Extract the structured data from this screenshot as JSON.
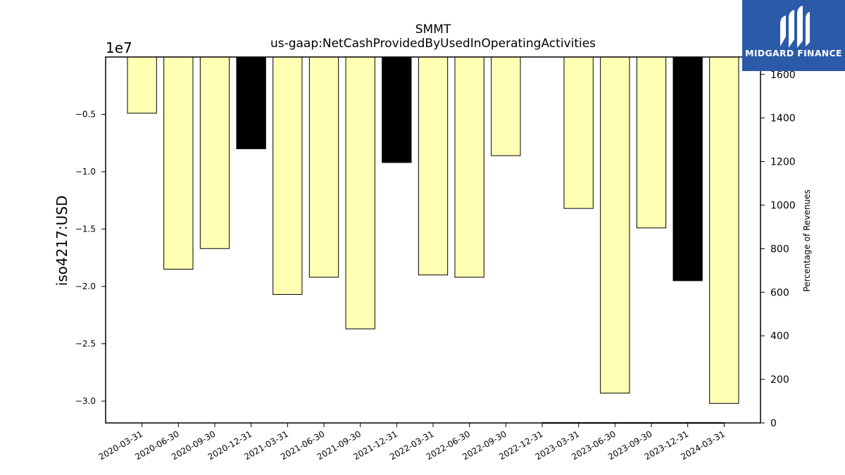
{
  "chart_data": {
    "type": "bar",
    "title": "SMMT",
    "subtitle": "us-gaap:NetCashProvidedByUsedInOperatingActivities",
    "ylabel": "iso4217:USD",
    "y_offset_label": "1e7",
    "y2label": "Percentage of Revenues",
    "categories": [
      "2020-03-31",
      "2020-06-30",
      "2020-09-30",
      "2020-12-31",
      "2021-03-31",
      "2021-06-30",
      "2021-09-30",
      "2021-12-31",
      "2022-03-31",
      "2022-06-30",
      "2022-09-30",
      "2022-12-31",
      "2023-03-31",
      "2023-06-30",
      "2023-09-30",
      "2023-12-31",
      "2024-03-31"
    ],
    "values": [
      -4900000,
      -18500000,
      -16700000,
      -8000000,
      -20700000,
      -19200000,
      -23700000,
      -9200000,
      -19000000,
      -19200000,
      -8600000,
      null,
      -13200000,
      -29300000,
      -14900000,
      -19500000,
      -30200000
    ],
    "bar_colors": [
      "#ffffb3",
      "#ffffb3",
      "#ffffb3",
      "#000000",
      "#ffffb3",
      "#ffffb3",
      "#ffffb3",
      "#000000",
      "#ffffb3",
      "#ffffb3",
      "#ffffb3",
      "#ffffb3",
      "#ffffb3",
      "#ffffb3",
      "#ffffb3",
      "#000000",
      "#ffffb3"
    ],
    "ylim": [
      -31900000,
      0
    ],
    "y_ticks": [
      -5000000,
      -10000000,
      -15000000,
      -20000000,
      -25000000,
      -30000000
    ],
    "y_tick_labels": [
      "−0.5",
      "−1.0",
      "−1.5",
      "−2.0",
      "−2.5",
      "−3.0"
    ],
    "y2lim": [
      0,
      1680
    ],
    "y2_ticks": [
      0,
      200,
      400,
      600,
      800,
      1000,
      1200,
      1400,
      1600
    ],
    "y2_tick_labels": [
      "0",
      "200",
      "400",
      "600",
      "800",
      "1000",
      "1200",
      "1400",
      "1600"
    ],
    "y2_series": {
      "start_category": "2022-12-31",
      "end_category": "2024-03-31",
      "value": 0
    }
  },
  "logo": {
    "text": "MIDGARD FINANCE",
    "icon": "midgard-logo-icon"
  }
}
